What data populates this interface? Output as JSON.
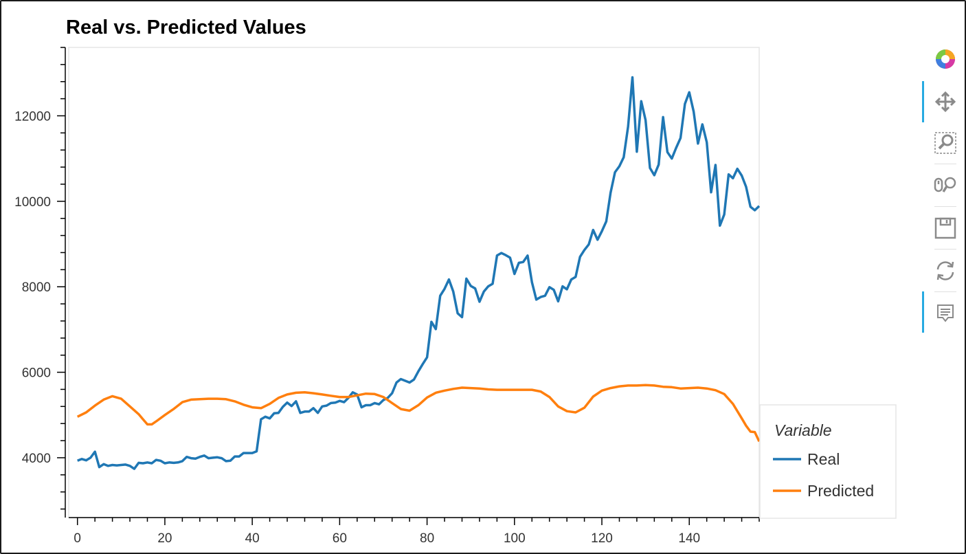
{
  "chart_data": {
    "type": "line",
    "title": "Real vs. Predicted Values",
    "xlim": [
      -2,
      156
    ],
    "ylim": [
      2600,
      13600
    ],
    "x_ticks": [
      0,
      20,
      40,
      60,
      80,
      100,
      120,
      140
    ],
    "y_ticks": [
      4000,
      6000,
      8000,
      10000,
      12000
    ],
    "legend_title": "Variable",
    "legend_position": "bottom-right, outside plot",
    "series": [
      {
        "name": "Real",
        "color": "#1f77b4",
        "points": [
          [
            0,
            3930
          ],
          [
            1,
            3970
          ],
          [
            2,
            3940
          ],
          [
            3,
            4000
          ],
          [
            4,
            4140
          ],
          [
            5,
            3780
          ],
          [
            6,
            3850
          ],
          [
            7,
            3810
          ],
          [
            8,
            3830
          ],
          [
            9,
            3820
          ],
          [
            10,
            3830
          ],
          [
            11,
            3840
          ],
          [
            12,
            3810
          ],
          [
            13,
            3740
          ],
          [
            14,
            3880
          ],
          [
            15,
            3870
          ],
          [
            16,
            3890
          ],
          [
            17,
            3870
          ],
          [
            18,
            3950
          ],
          [
            19,
            3930
          ],
          [
            20,
            3870
          ],
          [
            21,
            3890
          ],
          [
            22,
            3880
          ],
          [
            23,
            3890
          ],
          [
            24,
            3920
          ],
          [
            25,
            4020
          ],
          [
            26,
            3990
          ],
          [
            27,
            3980
          ],
          [
            28,
            4020
          ],
          [
            29,
            4050
          ],
          [
            30,
            3990
          ],
          [
            31,
            4000
          ],
          [
            32,
            4010
          ],
          [
            33,
            3990
          ],
          [
            34,
            3920
          ],
          [
            35,
            3930
          ],
          [
            36,
            4030
          ],
          [
            37,
            4030
          ],
          [
            38,
            4110
          ],
          [
            39,
            4110
          ],
          [
            40,
            4110
          ],
          [
            41,
            4150
          ],
          [
            42,
            4900
          ],
          [
            43,
            4960
          ],
          [
            44,
            4920
          ],
          [
            45,
            5040
          ],
          [
            46,
            5050
          ],
          [
            47,
            5190
          ],
          [
            48,
            5290
          ],
          [
            49,
            5210
          ],
          [
            50,
            5320
          ],
          [
            51,
            5050
          ],
          [
            52,
            5080
          ],
          [
            53,
            5080
          ],
          [
            54,
            5160
          ],
          [
            55,
            5050
          ],
          [
            56,
            5200
          ],
          [
            57,
            5220
          ],
          [
            58,
            5280
          ],
          [
            59,
            5290
          ],
          [
            60,
            5330
          ],
          [
            61,
            5300
          ],
          [
            62,
            5400
          ],
          [
            63,
            5530
          ],
          [
            64,
            5480
          ],
          [
            65,
            5180
          ],
          [
            66,
            5230
          ],
          [
            67,
            5230
          ],
          [
            68,
            5280
          ],
          [
            69,
            5250
          ],
          [
            70,
            5350
          ],
          [
            71,
            5400
          ],
          [
            72,
            5510
          ],
          [
            73,
            5760
          ],
          [
            74,
            5840
          ],
          [
            75,
            5800
          ],
          [
            76,
            5760
          ],
          [
            77,
            5830
          ],
          [
            78,
            6020
          ],
          [
            79,
            6190
          ],
          [
            80,
            6350
          ],
          [
            81,
            7180
          ],
          [
            82,
            7010
          ],
          [
            83,
            7790
          ],
          [
            84,
            7950
          ],
          [
            85,
            8170
          ],
          [
            86,
            7890
          ],
          [
            87,
            7380
          ],
          [
            88,
            7290
          ],
          [
            89,
            8190
          ],
          [
            90,
            8020
          ],
          [
            91,
            7960
          ],
          [
            92,
            7650
          ],
          [
            93,
            7890
          ],
          [
            94,
            8010
          ],
          [
            95,
            8070
          ],
          [
            96,
            8730
          ],
          [
            97,
            8790
          ],
          [
            98,
            8740
          ],
          [
            99,
            8680
          ],
          [
            100,
            8300
          ],
          [
            101,
            8560
          ],
          [
            102,
            8580
          ],
          [
            103,
            8730
          ],
          [
            104,
            8110
          ],
          [
            105,
            7700
          ],
          [
            106,
            7760
          ],
          [
            107,
            7790
          ],
          [
            108,
            7990
          ],
          [
            109,
            7930
          ],
          [
            110,
            7660
          ],
          [
            111,
            8010
          ],
          [
            112,
            7940
          ],
          [
            113,
            8170
          ],
          [
            114,
            8230
          ],
          [
            115,
            8700
          ],
          [
            116,
            8860
          ],
          [
            117,
            8990
          ],
          [
            118,
            9330
          ],
          [
            119,
            9100
          ],
          [
            120,
            9300
          ],
          [
            121,
            9530
          ],
          [
            122,
            10200
          ],
          [
            123,
            10680
          ],
          [
            124,
            10820
          ],
          [
            125,
            11030
          ],
          [
            126,
            11750
          ],
          [
            127,
            12900
          ],
          [
            128,
            11160
          ],
          [
            129,
            12340
          ],
          [
            130,
            11900
          ],
          [
            131,
            10780
          ],
          [
            132,
            10610
          ],
          [
            133,
            10860
          ],
          [
            134,
            11970
          ],
          [
            135,
            11150
          ],
          [
            136,
            11000
          ],
          [
            137,
            11250
          ],
          [
            138,
            11480
          ],
          [
            139,
            12280
          ],
          [
            140,
            12550
          ],
          [
            141,
            12100
          ],
          [
            142,
            11350
          ],
          [
            143,
            11800
          ],
          [
            144,
            11380
          ],
          [
            145,
            10210
          ],
          [
            146,
            10850
          ],
          [
            147,
            9430
          ],
          [
            148,
            9690
          ],
          [
            149,
            10630
          ],
          [
            150,
            10540
          ],
          [
            151,
            10760
          ],
          [
            152,
            10600
          ],
          [
            153,
            10340
          ],
          [
            154,
            9870
          ],
          [
            155,
            9790
          ],
          [
            156,
            9890
          ]
        ]
      },
      {
        "name": "Predicted",
        "color": "#ff7f0e",
        "points": [
          [
            0,
            4960
          ],
          [
            2,
            5060
          ],
          [
            4,
            5220
          ],
          [
            6,
            5360
          ],
          [
            8,
            5440
          ],
          [
            10,
            5380
          ],
          [
            12,
            5200
          ],
          [
            14,
            5020
          ],
          [
            15,
            4900
          ],
          [
            16,
            4780
          ],
          [
            17,
            4780
          ],
          [
            18,
            4850
          ],
          [
            20,
            5000
          ],
          [
            22,
            5140
          ],
          [
            24,
            5300
          ],
          [
            26,
            5360
          ],
          [
            28,
            5370
          ],
          [
            30,
            5380
          ],
          [
            32,
            5380
          ],
          [
            34,
            5370
          ],
          [
            36,
            5320
          ],
          [
            38,
            5240
          ],
          [
            40,
            5180
          ],
          [
            42,
            5160
          ],
          [
            44,
            5260
          ],
          [
            46,
            5400
          ],
          [
            48,
            5480
          ],
          [
            50,
            5520
          ],
          [
            52,
            5530
          ],
          [
            54,
            5510
          ],
          [
            56,
            5480
          ],
          [
            58,
            5450
          ],
          [
            60,
            5420
          ],
          [
            62,
            5420
          ],
          [
            64,
            5460
          ],
          [
            66,
            5500
          ],
          [
            68,
            5490
          ],
          [
            70,
            5420
          ],
          [
            72,
            5280
          ],
          [
            74,
            5140
          ],
          [
            76,
            5100
          ],
          [
            78,
            5230
          ],
          [
            80,
            5410
          ],
          [
            82,
            5520
          ],
          [
            84,
            5570
          ],
          [
            86,
            5610
          ],
          [
            88,
            5640
          ],
          [
            90,
            5630
          ],
          [
            92,
            5620
          ],
          [
            94,
            5600
          ],
          [
            96,
            5590
          ],
          [
            98,
            5590
          ],
          [
            100,
            5590
          ],
          [
            102,
            5590
          ],
          [
            104,
            5590
          ],
          [
            106,
            5550
          ],
          [
            108,
            5420
          ],
          [
            110,
            5200
          ],
          [
            112,
            5090
          ],
          [
            114,
            5060
          ],
          [
            116,
            5170
          ],
          [
            118,
            5430
          ],
          [
            120,
            5570
          ],
          [
            122,
            5630
          ],
          [
            124,
            5670
          ],
          [
            126,
            5690
          ],
          [
            128,
            5690
          ],
          [
            130,
            5700
          ],
          [
            132,
            5690
          ],
          [
            134,
            5660
          ],
          [
            136,
            5650
          ],
          [
            138,
            5620
          ],
          [
            140,
            5630
          ],
          [
            142,
            5640
          ],
          [
            144,
            5620
          ],
          [
            146,
            5580
          ],
          [
            148,
            5490
          ],
          [
            150,
            5260
          ],
          [
            152,
            4920
          ],
          [
            153,
            4750
          ],
          [
            154,
            4610
          ],
          [
            155,
            4600
          ],
          [
            156,
            4380
          ]
        ]
      }
    ]
  },
  "toolbar": {
    "tools": [
      {
        "name": "bokeh-logo-icon",
        "icon": "bokeh-logo"
      },
      {
        "name": "pan-tool-icon",
        "icon": "pan",
        "active": true
      },
      {
        "name": "box-zoom-tool-icon",
        "icon": "box-zoom"
      },
      {
        "name": "wheel-zoom-tool-icon",
        "icon": "wheel-zoom"
      },
      {
        "name": "save-tool-icon",
        "icon": "save"
      },
      {
        "name": "reset-tool-icon",
        "icon": "reset"
      },
      {
        "name": "hover-tool-icon",
        "icon": "hover",
        "active": true
      }
    ],
    "active_color": "#26aae1",
    "icon_color": "#808080"
  }
}
